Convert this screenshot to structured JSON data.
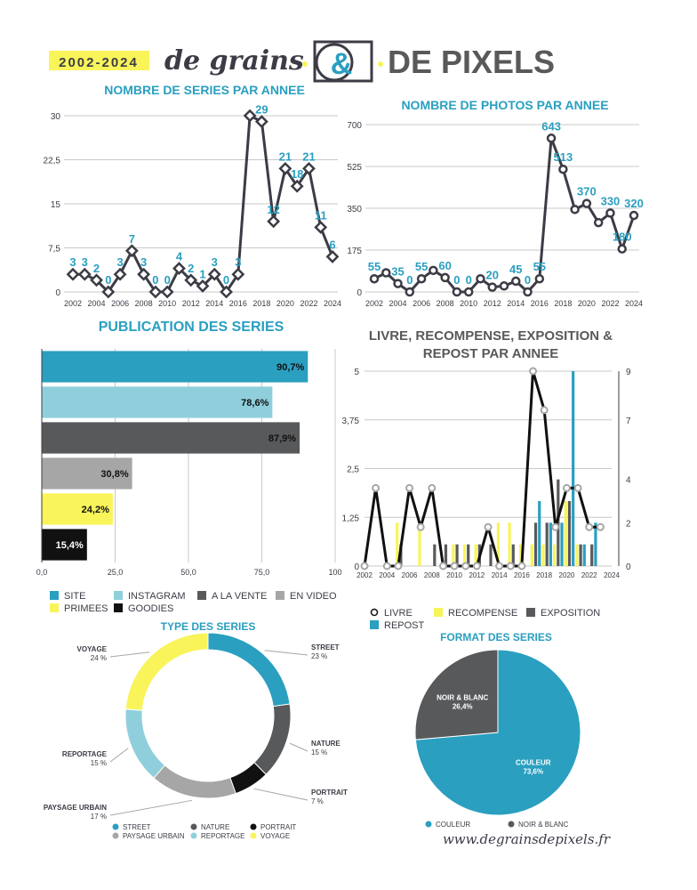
{
  "header": {
    "years": "2002-2024",
    "brand_left": "de grains",
    "brand_amp": "&",
    "brand_right": "DE PIXELS"
  },
  "footer": {
    "url": "www.degrainsdepixels.fr"
  },
  "colors": {
    "blue": "#2a9fc0",
    "light_blue": "#8fcfdc",
    "dark_gray": "#58595b",
    "mid_gray": "#a6a6a6",
    "yellow": "#f8f45a",
    "black": "#111111",
    "line": "#3c3c46",
    "label_blue": "#2a9fc0"
  },
  "chart_data": [
    {
      "id": "series",
      "type": "line",
      "title": "NOMBRE DE SERIES PAR ANNEE",
      "x": [
        2002,
        2003,
        2004,
        2005,
        2006,
        2007,
        2008,
        2009,
        2010,
        2011,
        2012,
        2013,
        2014,
        2015,
        2016,
        2017,
        2018,
        2019,
        2020,
        2021,
        2022,
        2023,
        2024
      ],
      "values": [
        3,
        3,
        2,
        0,
        3,
        7,
        3,
        0,
        0,
        4,
        2,
        1,
        3,
        0,
        3,
        30,
        29,
        12,
        21,
        18,
        21,
        11,
        6
      ],
      "labels": [
        "3",
        "3",
        "2",
        "0",
        "3",
        "7",
        "3",
        "0",
        "0",
        "4",
        "2",
        "1",
        "3",
        "0",
        "3",
        "",
        "29",
        "12",
        "21",
        "18",
        "21",
        "11",
        "6"
      ],
      "yticks": [
        "0",
        "7,5",
        "15",
        "22,5",
        "30"
      ],
      "ytick_values": [
        0,
        7.5,
        15,
        22.5,
        30
      ],
      "xticks": [
        "2002",
        "2004",
        "2006",
        "2008",
        "2010",
        "2012",
        "2014",
        "2016",
        "2018",
        "2020",
        "2022",
        "2024"
      ],
      "ylim": [
        0,
        30
      ]
    },
    {
      "id": "photos",
      "type": "line",
      "title": "NOMBRE DE PHOTOS PAR ANNEE",
      "x": [
        2002,
        2003,
        2004,
        2005,
        2006,
        2007,
        2008,
        2009,
        2010,
        2011,
        2012,
        2013,
        2014,
        2015,
        2016,
        2017,
        2018,
        2019,
        2020,
        2021,
        2022,
        2023,
        2024
      ],
      "values": [
        55,
        80,
        35,
        0,
        55,
        90,
        60,
        0,
        0,
        55,
        20,
        25,
        45,
        0,
        55,
        643,
        513,
        345,
        370,
        290,
        330,
        180,
        320
      ],
      "labels": [
        "55",
        "",
        "35",
        "0",
        "55",
        "",
        "60",
        "0",
        "0",
        "",
        "20",
        "",
        "45",
        "0",
        "55",
        "643",
        "513",
        "",
        "370",
        "",
        "330",
        "180",
        "320"
      ],
      "yticks": [
        "0",
        "175",
        "350",
        "525",
        "700"
      ],
      "ytick_values": [
        0,
        175,
        350,
        525,
        700
      ],
      "xticks": [
        "2002",
        "2004",
        "2006",
        "2008",
        "2010",
        "2012",
        "2014",
        "2016",
        "2018",
        "2020",
        "2022",
        "2024"
      ],
      "ylim": [
        0,
        700
      ]
    },
    {
      "id": "publication",
      "type": "bar",
      "orientation": "horizontal",
      "title": "PUBLICATION DES SERIES",
      "categories": [
        "SITE",
        "INSTAGRAM",
        "A LA VENTE",
        "EN VIDEO",
        "PRIMEES",
        "GOODIES"
      ],
      "values": [
        90.7,
        78.6,
        87.9,
        30.8,
        24.2,
        15.4
      ],
      "value_labels": [
        "90,7%",
        "78,6%",
        "87,9%",
        "30,8%",
        "24,2%",
        "15,4%"
      ],
      "colors": [
        "#2a9fc0",
        "#8fcfdc",
        "#58595b",
        "#a6a6a6",
        "#f8f45a",
        "#111111"
      ],
      "xticks": [
        "0,0",
        "25,0",
        "50,0",
        "75,0",
        "100"
      ],
      "xtick_values": [
        0,
        25,
        50,
        75,
        100
      ],
      "xlim": [
        0,
        100
      ]
    },
    {
      "id": "awards",
      "type": "line",
      "title": "LIVRE, RECOMPENSE, EXPOSITION & REPOST PAR ANNEE",
      "x": [
        2002,
        2003,
        2004,
        2005,
        2006,
        2007,
        2008,
        2009,
        2010,
        2011,
        2012,
        2013,
        2014,
        2015,
        2016,
        2017,
        2018,
        2019,
        2020,
        2021,
        2022,
        2023
      ],
      "yticks_left": [
        "0",
        "1,25",
        "2,5",
        "3,75",
        "5"
      ],
      "ytick_values_left": [
        0,
        1.25,
        2.5,
        3.75,
        5
      ],
      "yticks_right": [
        "0",
        "2",
        "4",
        "7",
        "9"
      ],
      "ytick_values_right": [
        0,
        2,
        4,
        6.75,
        9
      ],
      "xticks": [
        "2002",
        "2004",
        "2006",
        "2008",
        "2010",
        "2012",
        "2014",
        "2016",
        "2018",
        "2020",
        "2022",
        "2024"
      ],
      "ylim_left": [
        0,
        5
      ],
      "ylim_right": [
        0,
        9
      ],
      "series": [
        {
          "name": "LIVRE",
          "axis": "left",
          "values": [
            0,
            2,
            0,
            0,
            2,
            1,
            2,
            0,
            0,
            0,
            0,
            1,
            0,
            0,
            0,
            5,
            4,
            1,
            2,
            2,
            1,
            1
          ]
        },
        {
          "name": "RECOMPENSE",
          "axis": "right",
          "values": [
            0,
            0,
            0,
            2,
            0,
            2,
            0,
            0,
            1,
            1,
            1,
            0,
            2,
            2,
            1,
            1,
            1,
            1,
            3,
            1,
            0,
            0
          ]
        },
        {
          "name": "EXPOSITION",
          "axis": "right",
          "values": [
            0,
            0,
            0,
            1,
            0,
            0,
            1,
            1,
            1,
            1,
            1,
            1,
            0,
            1,
            0,
            2,
            2,
            4,
            3,
            1,
            1,
            0
          ]
        },
        {
          "name": "REPOST",
          "axis": "right",
          "values": [
            0,
            0,
            0,
            0,
            0,
            0,
            0,
            0,
            0,
            0,
            0,
            0,
            0,
            0,
            0,
            3,
            2,
            2,
            9,
            1,
            2,
            0
          ]
        }
      ]
    },
    {
      "id": "type",
      "type": "pie",
      "subtype": "donut",
      "title": "TYPE DES SERIES",
      "categories": [
        "STREET",
        "NATURE",
        "PORTRAIT",
        "PAYSAGE URBAIN",
        "REPORTAGE",
        "VOYAGE"
      ],
      "values": [
        23,
        15,
        7,
        17,
        15,
        24
      ],
      "value_labels": [
        "23 %",
        "15 %",
        "7 %",
        "17 %",
        "15 %",
        "24 %"
      ],
      "colors": [
        "#2a9fc0",
        "#58595b",
        "#111111",
        "#a6a6a6",
        "#8fcfdc",
        "#f8f45a"
      ]
    },
    {
      "id": "format",
      "type": "pie",
      "title": "FORMAT DES SERIES",
      "categories": [
        "COULEUR",
        "NOIR & BLANC"
      ],
      "values": [
        73.6,
        26.4
      ],
      "value_labels": [
        "73,6%",
        "26,4%"
      ],
      "colors": [
        "#2a9fc0",
        "#58595b"
      ]
    }
  ]
}
